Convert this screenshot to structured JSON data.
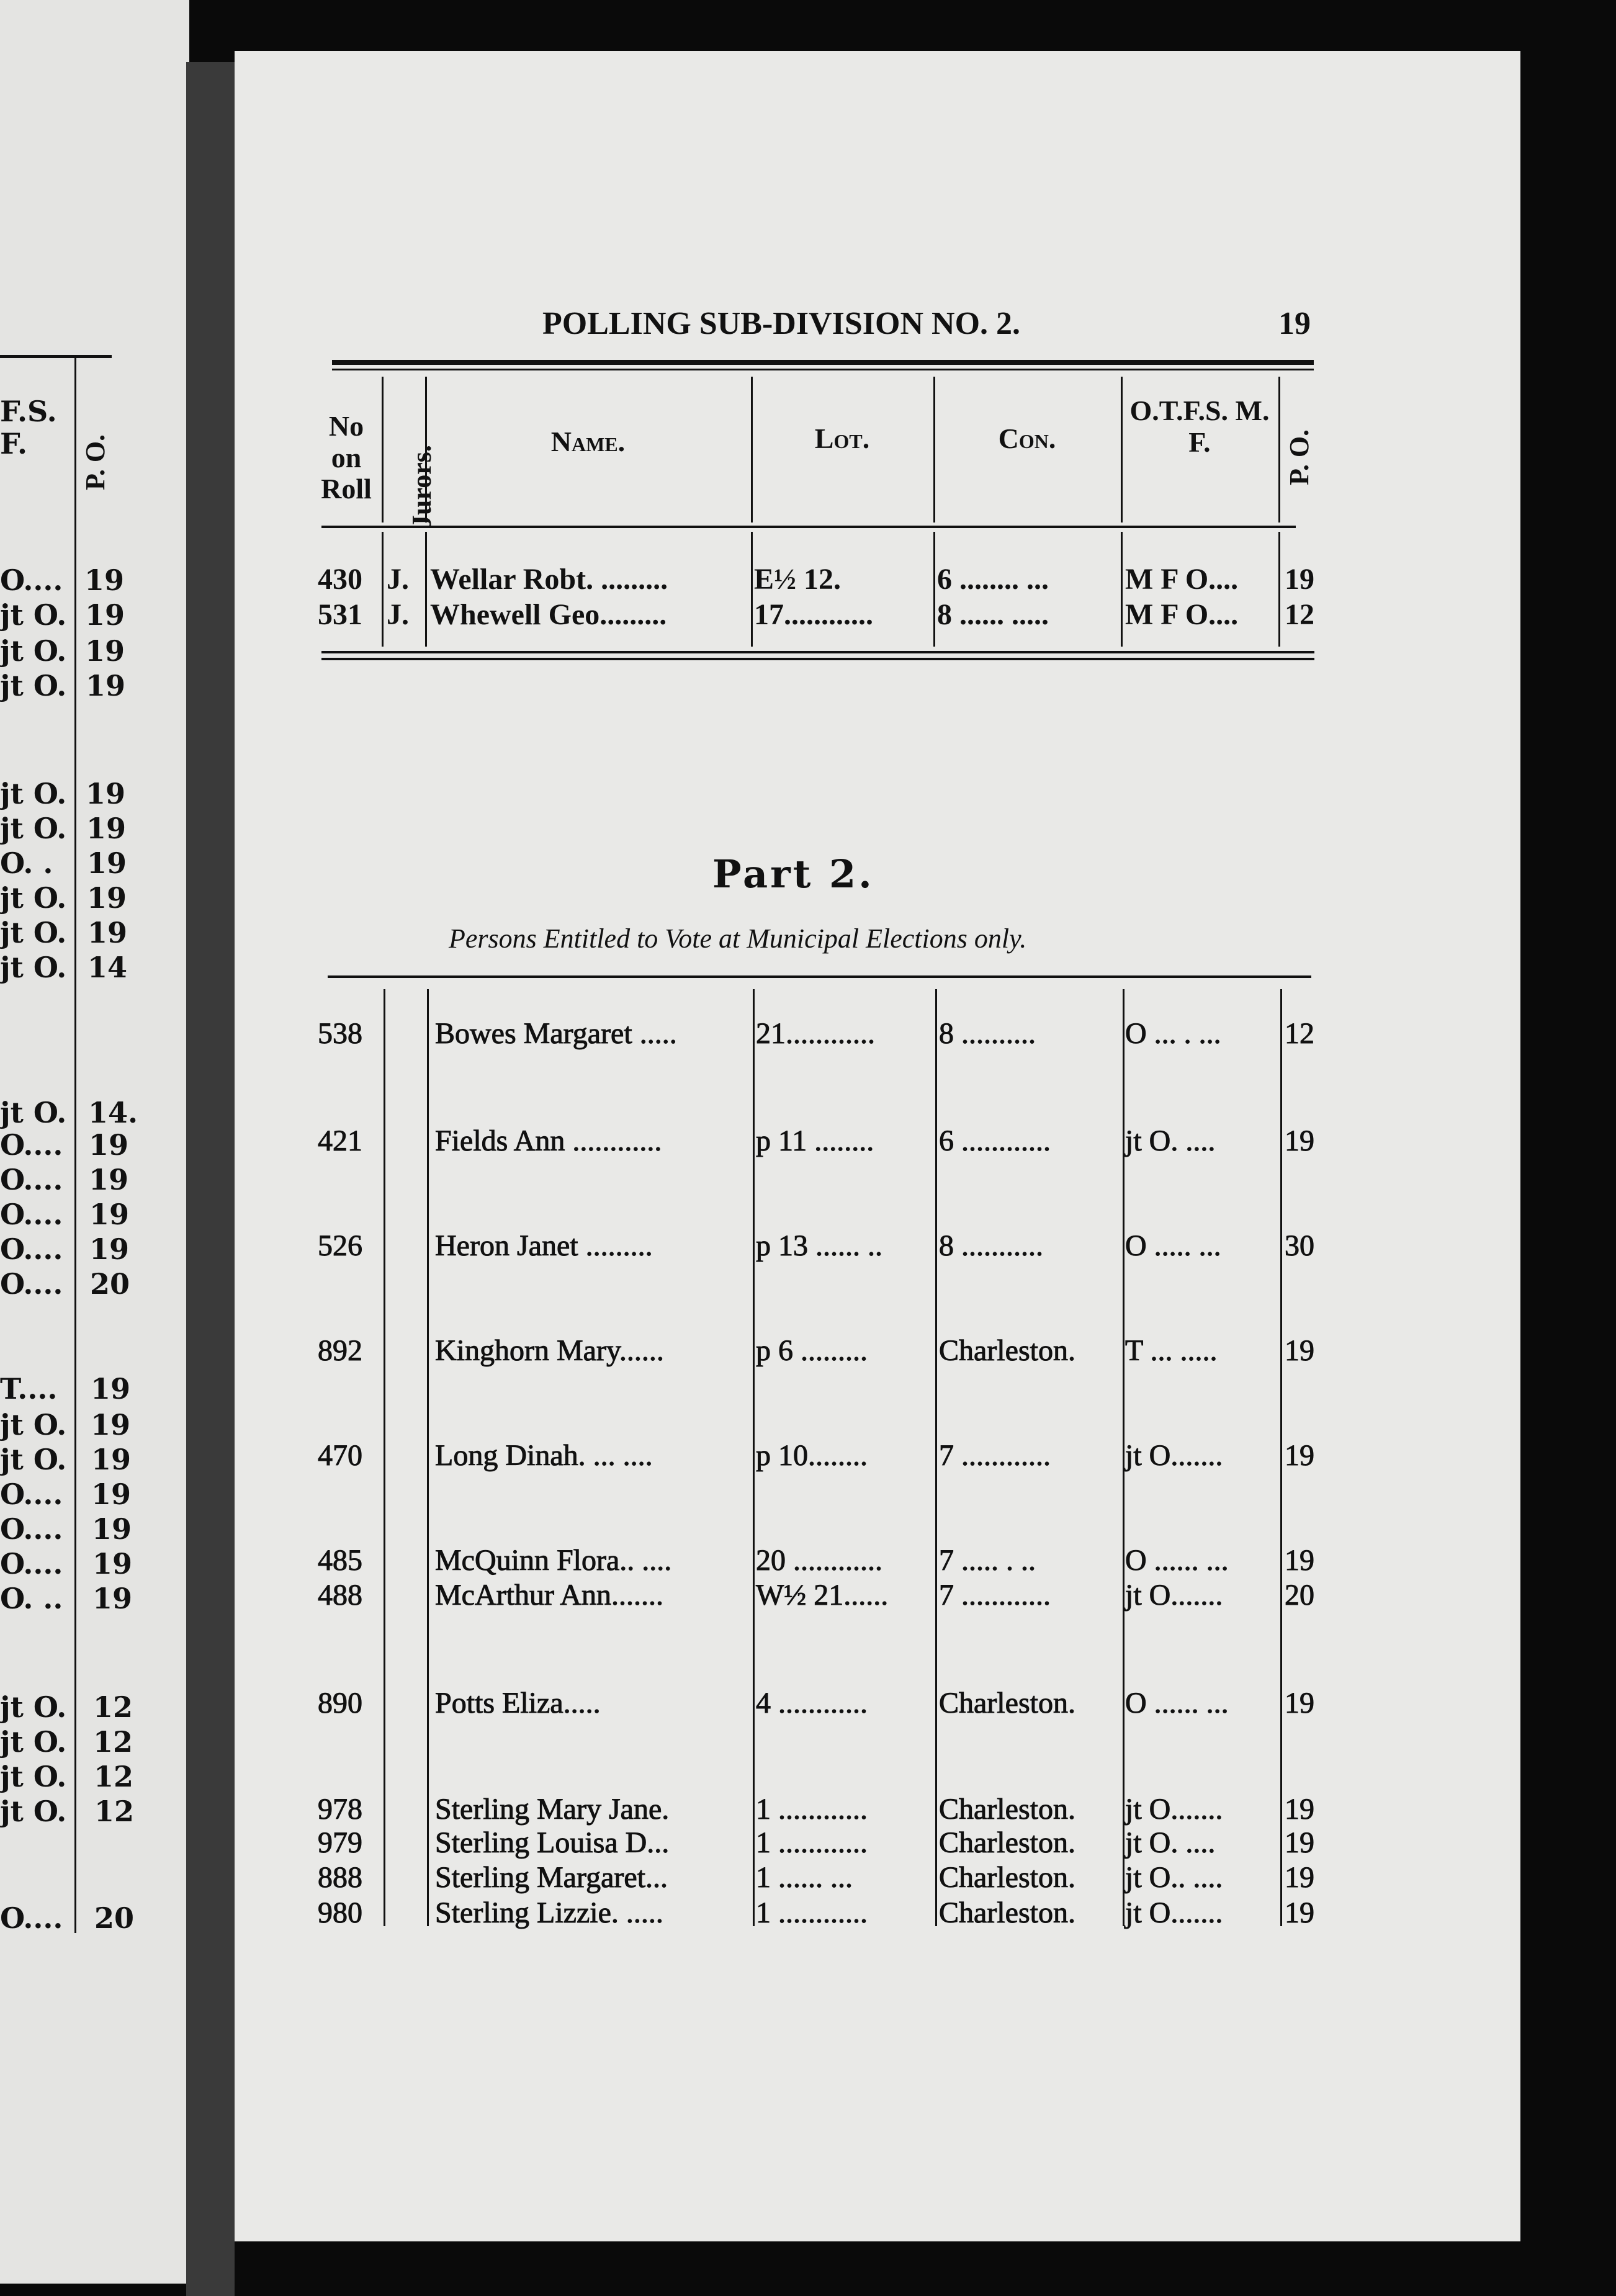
{
  "left_page": {
    "header": {
      "otfs_fragment_1": "F.S.",
      "otfs_fragment_2": "F.",
      "po": "P. O."
    },
    "rows": [
      [
        "O....",
        "19"
      ],
      [
        "jt O.",
        "19"
      ],
      [
        "jt O.",
        "19"
      ],
      [
        "jt O.",
        "19"
      ],
      [
        "jt O.",
        "19"
      ],
      [
        "jt O.",
        "19"
      ],
      [
        "O.  .",
        "19"
      ],
      [
        "jt O.",
        "19"
      ],
      [
        "jt O.",
        "19"
      ],
      [
        "jt O.",
        "14"
      ],
      [
        "jt O.",
        "14."
      ],
      [
        "O....",
        "19"
      ],
      [
        "O....",
        "19"
      ],
      [
        "O....",
        "19"
      ],
      [
        "O....",
        "19"
      ],
      [
        "O....",
        "20"
      ],
      [
        "T....",
        "19"
      ],
      [
        "jt O.",
        "19"
      ],
      [
        "jt O.",
        "19"
      ],
      [
        "O....",
        "19"
      ],
      [
        "O....",
        "19"
      ],
      [
        "O....",
        "19"
      ],
      [
        "O. ..",
        "19"
      ],
      [
        "jt O.",
        "12"
      ],
      [
        "jt O.",
        "12"
      ],
      [
        "jt O.",
        "12"
      ],
      [
        "jt O.",
        "12"
      ],
      [
        "O....",
        "20"
      ]
    ]
  },
  "page": {
    "running_head": "POLLING SUB-DIVISION NO. 2.",
    "page_number": "19",
    "columns": {
      "no": "No on Roll",
      "jurors": "Jurors.",
      "name": "Name.",
      "lot": "Lot.",
      "con": "Con.",
      "otfs": "O.T.F.S. M. F.",
      "po": "P. O."
    },
    "part1_rows": [
      {
        "no": "430",
        "jurors": "J.",
        "name": "Wellar Robt. .........",
        "lot": "E½ 12.",
        "con": "6  ........ ...",
        "otfs": "M F O....",
        "po": "19"
      },
      {
        "no": "531",
        "jurors": "J.",
        "name": "Whewell  Geo.........",
        "lot": "17............",
        "con": "8  ...... .....",
        "otfs": "M F O....",
        "po": "12"
      }
    ],
    "part2_title": "Part 2.",
    "part2_subtitle": "Persons Entitled to Vote at Municipal Elections only.",
    "part2_rows": [
      {
        "no": "538",
        "name": "Bowes Margaret .....",
        "lot": "21............",
        "con": "8   ..........",
        "otfs": "O ... . ...",
        "po": "12"
      },
      {
        "no": "421",
        "name": "Fields Ann ............",
        "lot": "p 11 ........",
        "con": "6  ............",
        "otfs": "jt O. ....",
        "po": "19"
      },
      {
        "no": "526",
        "name": "Heron  Janet .........",
        "lot": "p 13 ...... ..",
        "con": "8  ...........",
        "otfs": "O  ..... ...",
        "po": "30"
      },
      {
        "no": "892",
        "name": "Kinghorn  Mary......",
        "lot": "p 6 .........",
        "con": "Charleston.",
        "otfs": "T ...  .....",
        "po": "19"
      },
      {
        "no": "470",
        "name": "Long  Dinah. ... ....",
        "lot": "p 10........",
        "con": "7  ............",
        "otfs": "jt O.......",
        "po": "19"
      },
      {
        "no": "485",
        "name": "McQuinn Flora.. ....",
        "lot": "20 ............",
        "con": "7  ..... .  ..",
        "otfs": "O ...... ...",
        "po": "19"
      },
      {
        "no": "488",
        "name": "McArthur Ann.......",
        "lot": "W½ 21......",
        "con": "7  ............",
        "otfs": "jt O.......",
        "po": "20"
      },
      {
        "no": "890",
        "name": "Potts Eliza.....",
        "lot": "4  ............",
        "con": "Charleston.",
        "otfs": "O ...... ...",
        "po": "19"
      },
      {
        "no": "978",
        "name": "Sterling  Mary Jane.",
        "lot": "1  ............",
        "con": "Charleston.",
        "otfs": "jt O.......",
        "po": "19"
      },
      {
        "no": "979",
        "name": "Sterling  Louisa D...",
        "lot": "1  ............",
        "con": "Charleston.",
        "otfs": "jt O. ....",
        "po": "19"
      },
      {
        "no": "888",
        "name": "Sterling  Margaret...",
        "lot": "1  ......  ...",
        "con": "Charleston.",
        "otfs": "jt O.. ....",
        "po": "19"
      },
      {
        "no": "980",
        "name": "Sterling Lizzie. .....",
        "lot": "1  ............",
        "con": "Charleston.",
        "otfs": "jt O.......",
        "po": "19"
      }
    ]
  }
}
